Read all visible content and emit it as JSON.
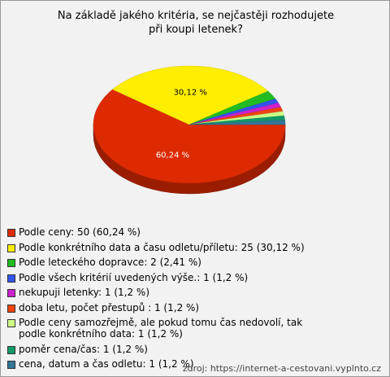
{
  "chart_data": {
    "type": "pie",
    "title": "Na základě jakého kritéria, se nejčastěji rozhodujete při koupi letenek?",
    "categories": [
      "Podle ceny: 50 (60,24 %)",
      "Podle konkrétního data a času odletu/příletu: 25 (30,12 %)",
      "Podle leteckého dopravce: 2 (2,41 %)",
      "Podle všech kritérií uvedených výše.: 1 (1,2 %)",
      "nekupuji letenky: 1 (1,2 %)",
      "doba letu, počet přestupů : 1 (1,2 %)",
      "Podle ceny samozřejmě, ale pokud tomu čas nedovolí, tak podle konkrétního data: 1 (1,2 %)",
      "poměr cena/čas: 1 (1,2 %)",
      "cena, datum a čas odletu: 1 (1,2 %)"
    ],
    "values": [
      50,
      25,
      2,
      1,
      1,
      1,
      1,
      1,
      1
    ],
    "value_labels": [
      "60,24 %",
      "30,12 %",
      null,
      null,
      null,
      null,
      null,
      null,
      null
    ],
    "colors": [
      "#dd2a00",
      "#ffee00",
      "#22bb22",
      "#3355ee",
      "#cc22cc",
      "#ee4411",
      "#ccff88",
      "#119966",
      "#337799"
    ],
    "source": "zdroj: https://internet-a-cestovani.vyplnto.cz"
  }
}
